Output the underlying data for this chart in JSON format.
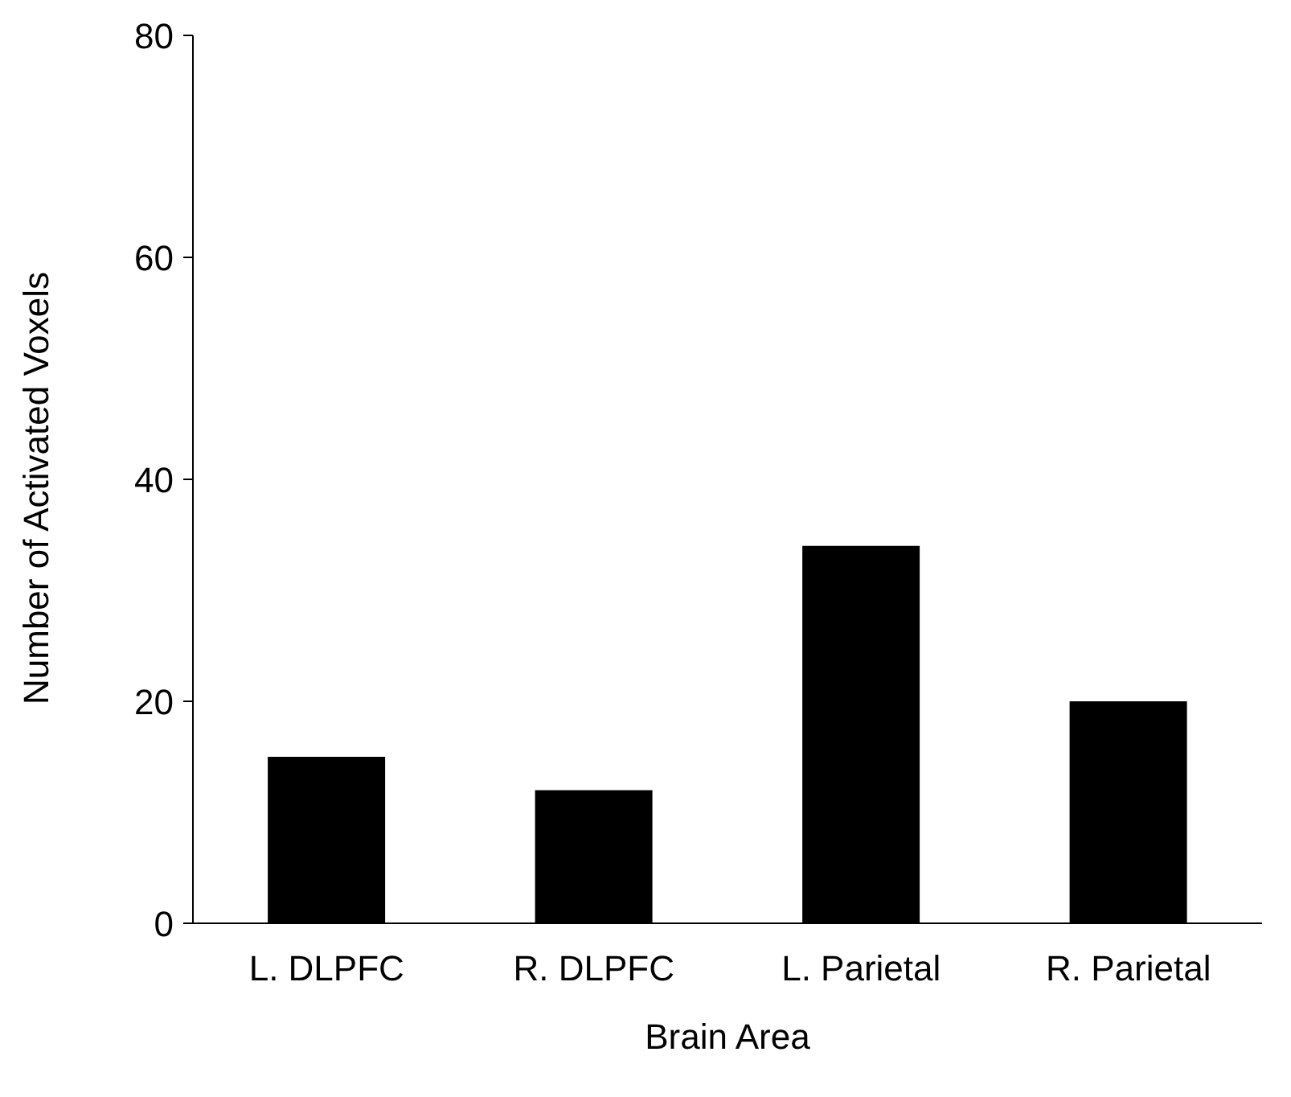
{
  "chart_data": {
    "type": "bar",
    "xlabel": "Brain Area",
    "ylabel": "Number of Activated Voxels",
    "categories": [
      "L. DLPFC",
      "R. DLPFC",
      "L. Parietal",
      "R. Parietal"
    ],
    "values": [
      15,
      12,
      34,
      20
    ],
    "color": "#000000",
    "ylim": [
      0,
      80
    ],
    "yticks": [
      0,
      20,
      40,
      60,
      80
    ],
    "grid": false,
    "legend": false
  }
}
